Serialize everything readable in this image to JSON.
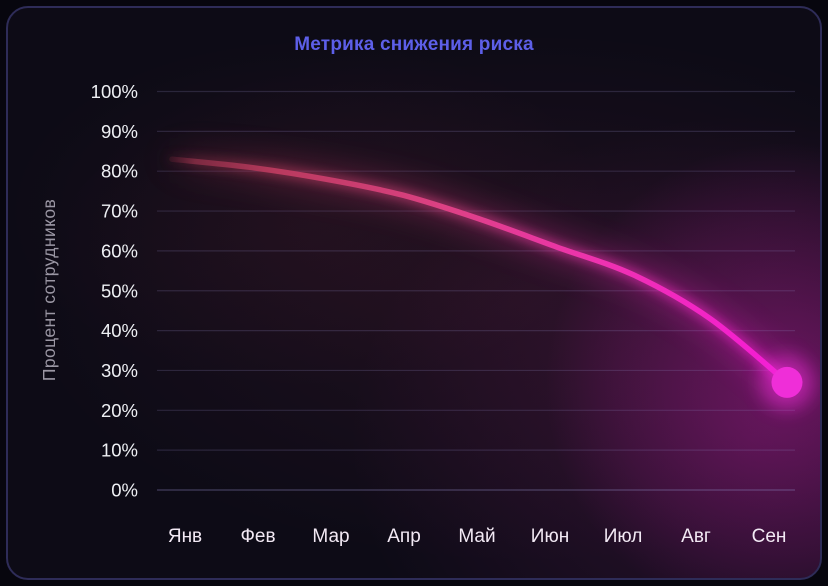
{
  "card": {
    "title": "Метрика снижения риска"
  },
  "chart_data": {
    "type": "line",
    "title": "Метрика снижения риска",
    "xlabel": "",
    "ylabel": "Процент сотрудников",
    "categories": [
      "Янв",
      "Фев",
      "Мар",
      "Апр",
      "Май",
      "Июн",
      "Июл",
      "Авг",
      "Сен"
    ],
    "series": [
      {
        "values": [
          83,
          81,
          78,
          74,
          68,
          61,
          54,
          43,
          27
        ]
      }
    ],
    "ylim": [
      0,
      100
    ],
    "ytick_step": 10,
    "ytick_suffix": "%",
    "grid": "horizontal-only",
    "legend": "none",
    "endpoint_marker": true,
    "colors": {
      "background": "#0d0b16",
      "card_border": "#2e2c58",
      "title": "#5d5fe8",
      "y_tick_label": "#eef0f4",
      "x_tick_label": "#f2e9f4",
      "y_axis_title": "#9b97a4",
      "gridline": "#8d85be",
      "line_gradient": [
        "#6f2436",
        "#93304a",
        "#b93a5e",
        "#dd4184",
        "#ee32b0",
        "#f51bd6"
      ],
      "endpoint_dot": "#ef2ed8"
    }
  }
}
